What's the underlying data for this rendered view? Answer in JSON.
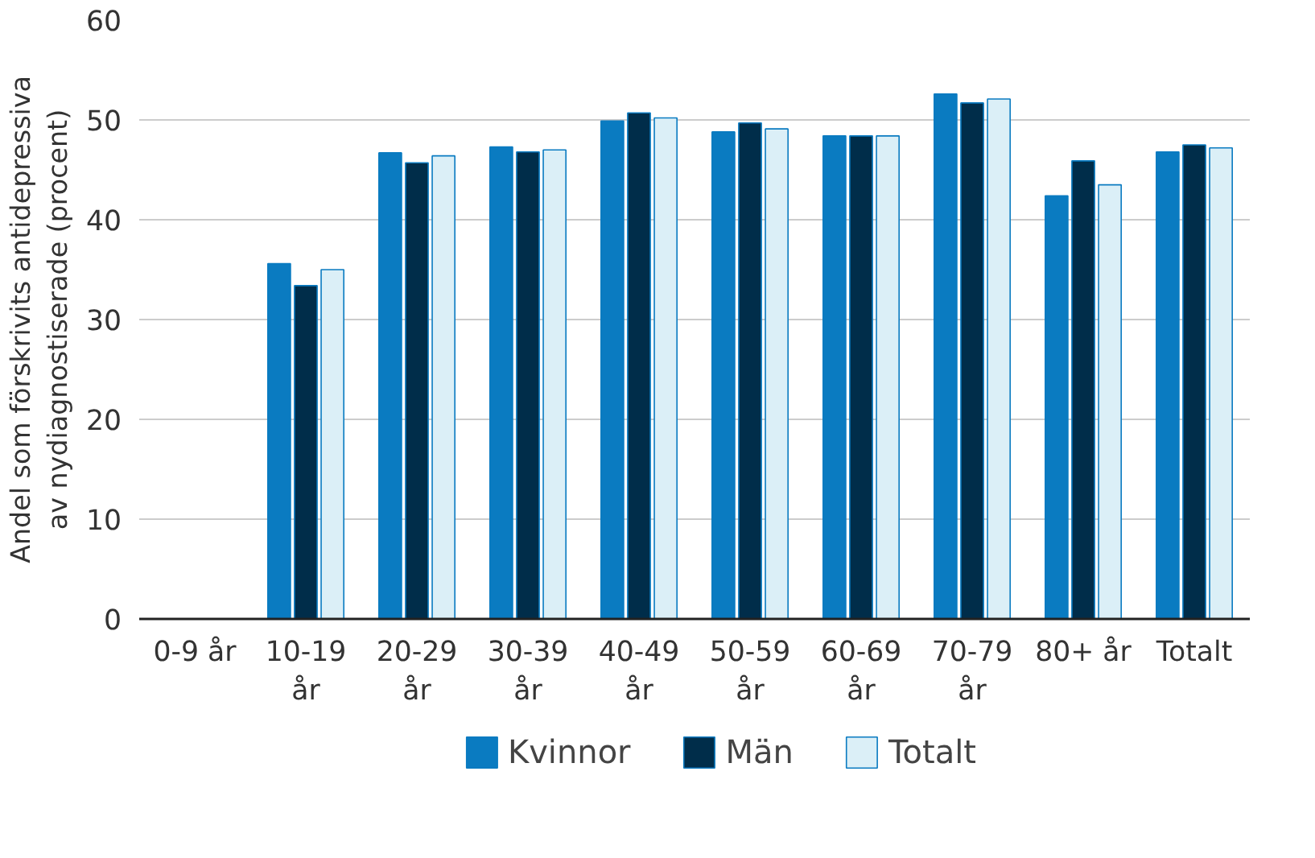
{
  "chart_data": {
    "type": "bar",
    "ylabel": "Andel som förskrivits antidepressiva av nydiagnostiserade (procent)",
    "categories": [
      "0-9 år",
      "10-19 år",
      "20-29 år",
      "30-39 år",
      "40-49 år",
      "50-59 år",
      "60-69 år",
      "70-79 år",
      "80+ år",
      "Totalt"
    ],
    "series": [
      {
        "name": "Kvinnor",
        "color": "#0a7bc1",
        "values": [
          null,
          35.6,
          46.7,
          47.3,
          49.9,
          48.8,
          48.4,
          52.6,
          42.4,
          46.8
        ]
      },
      {
        "name": "Män",
        "color": "#002d4a",
        "values": [
          null,
          33.4,
          45.7,
          46.8,
          50.7,
          49.7,
          48.4,
          51.7,
          45.9,
          47.5
        ]
      },
      {
        "name": "Totalt",
        "color": "#dbeff7",
        "values": [
          null,
          35.0,
          46.4,
          47.0,
          50.2,
          49.1,
          48.4,
          52.1,
          43.5,
          47.2
        ]
      }
    ],
    "ylim": [
      0,
      60
    ],
    "yticks": [
      0,
      10,
      20,
      30,
      40,
      50,
      60
    ],
    "grid": "y",
    "legend": "bottom"
  }
}
